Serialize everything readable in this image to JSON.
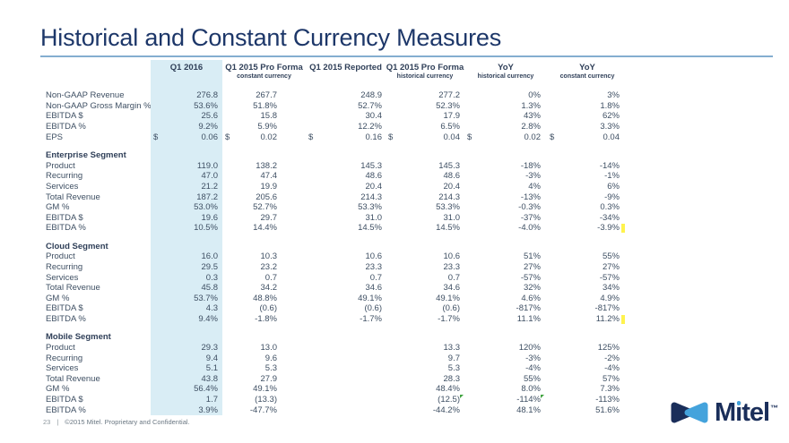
{
  "title": "Historical and Constant Currency Measures",
  "table": {
    "currency_symbol": "$",
    "columns": [
      {
        "label": "Q1 2016",
        "sub": ""
      },
      {
        "label": "Q1 2015 Pro Forma",
        "sub": "constant currency"
      },
      {
        "label": "Q1 2015 Reported",
        "sub": ""
      },
      {
        "label": "Q1 2015 Pro Forma",
        "sub": "historical currency"
      },
      {
        "label": "YoY",
        "sub": "historical currency"
      },
      {
        "label": "YoY",
        "sub": "constant currency"
      }
    ],
    "sections": [
      {
        "title": "",
        "rows": [
          {
            "label": "Non-GAAP Revenue",
            "cells": [
              "276.8",
              "267.7",
              "248.9",
              "277.2",
              "0%",
              "3%"
            ]
          },
          {
            "label": "Non-GAAP Gross Margin %",
            "cells": [
              "53.6%",
              "51.8%",
              "52.7%",
              "52.3%",
              "1.3%",
              "1.8%"
            ]
          },
          {
            "label": "EBITDA $",
            "cells": [
              "25.6",
              "15.8",
              "30.4",
              "17.9",
              "43%",
              "62%"
            ]
          },
          {
            "label": "EBITDA %",
            "cells": [
              "9.2%",
              "5.9%",
              "12.2%",
              "6.5%",
              "2.8%",
              "3.3%"
            ]
          },
          {
            "label": "EPS",
            "money": true,
            "cells": [
              "0.06",
              "0.02",
              "0.16",
              "0.04",
              "0.02",
              "0.04"
            ]
          }
        ]
      },
      {
        "title": "Enterprise Segment",
        "rows": [
          {
            "label": "Product",
            "cells": [
              "119.0",
              "138.2",
              "145.3",
              "145.3",
              "-18%",
              "-14%"
            ]
          },
          {
            "label": "Recurring",
            "cells": [
              "47.0",
              "47.4",
              "48.6",
              "48.6",
              "-3%",
              "-1%"
            ]
          },
          {
            "label": "Services",
            "cells": [
              "21.2",
              "19.9",
              "20.4",
              "20.4",
              "4%",
              "6%"
            ]
          },
          {
            "label": "Total Revenue",
            "cells": [
              "187.2",
              "205.6",
              "214.3",
              "214.3",
              "-13%",
              "-9%"
            ]
          },
          {
            "label": "GM %",
            "cells": [
              "53.0%",
              "52.7%",
              "53.3%",
              "53.3%",
              "-0.3%",
              "0.3%"
            ]
          },
          {
            "label": "EBITDA $",
            "cells": [
              "19.6",
              "29.7",
              "31.0",
              "31.0",
              "-37%",
              "-34%"
            ]
          },
          {
            "label": "EBITDA %",
            "cells": [
              "10.5%",
              "14.4%",
              "14.5%",
              "14.5%",
              "-4.0%",
              "-3.9%"
            ],
            "ymark": 5
          }
        ]
      },
      {
        "title": "Cloud Segment",
        "rows": [
          {
            "label": "Product",
            "cells": [
              "16.0",
              "10.3",
              "10.6",
              "10.6",
              "51%",
              "55%"
            ]
          },
          {
            "label": "Recurring",
            "cells": [
              "29.5",
              "23.2",
              "23.3",
              "23.3",
              "27%",
              "27%"
            ]
          },
          {
            "label": "Services",
            "cells": [
              "0.3",
              "0.7",
              "0.7",
              "0.7",
              "-57%",
              "-57%"
            ]
          },
          {
            "label": "Total Revenue",
            "cells": [
              "45.8",
              "34.2",
              "34.6",
              "34.6",
              "32%",
              "34%"
            ]
          },
          {
            "label": "GM %",
            "cells": [
              "53.7%",
              "48.8%",
              "49.1%",
              "49.1%",
              "4.6%",
              "4.9%"
            ]
          },
          {
            "label": "EBITDA $",
            "cells": [
              "4.3",
              "(0.6)",
              "(0.6)",
              "(0.6)",
              "-817%",
              "-817%"
            ]
          },
          {
            "label": "EBITDA %",
            "cells": [
              "9.4%",
              "-1.8%",
              "-1.7%",
              "-1.7%",
              "11.1%",
              "11.2%"
            ],
            "ymark": 5
          }
        ]
      },
      {
        "title": "Mobile Segment",
        "rows": [
          {
            "label": "Product",
            "cells": [
              "29.3",
              "13.0",
              "",
              "13.3",
              "120%",
              "125%"
            ]
          },
          {
            "label": "Recurring",
            "cells": [
              "9.4",
              "9.6",
              "",
              "9.7",
              "-3%",
              "-2%"
            ]
          },
          {
            "label": "Services",
            "cells": [
              "5.1",
              "5.3",
              "",
              "5.3",
              "-4%",
              "-4%"
            ]
          },
          {
            "label": "Total Revenue",
            "cells": [
              "43.8",
              "27.9",
              "",
              "28.3",
              "55%",
              "57%"
            ]
          },
          {
            "label": "GM %",
            "cells": [
              "56.4%",
              "49.1%",
              "",
              "48.4%",
              "8.0%",
              "7.3%"
            ]
          },
          {
            "label": "EBITDA $",
            "cells": [
              "1.7",
              "(13.3)",
              "",
              "(12.5)",
              "-114%",
              "-113%"
            ],
            "gmarks": [
              3,
              4
            ]
          },
          {
            "label": "EBITDA %",
            "cells": [
              "3.9%",
              "-47.7%",
              "",
              "-44.2%",
              "48.1%",
              "51.6%"
            ]
          }
        ]
      }
    ]
  },
  "footer": {
    "page": "23",
    "separator": "|",
    "text": "©2015 Mitel. Proprietary and Confidential."
  },
  "logo": {
    "m": "M",
    "i": "i",
    "tel": "tel",
    "tm": "™"
  },
  "colors": {
    "title": "#1d3769",
    "rule": "#84aed0",
    "highlight_column": "#d9edf5",
    "table_text": "#3e4f63",
    "header_text": "#2f3f58",
    "yellow_mark": "#fff34d",
    "green_mark": "#3fa33f",
    "logo_navy": "#1a2e5a",
    "logo_blue": "#44a3dc"
  }
}
